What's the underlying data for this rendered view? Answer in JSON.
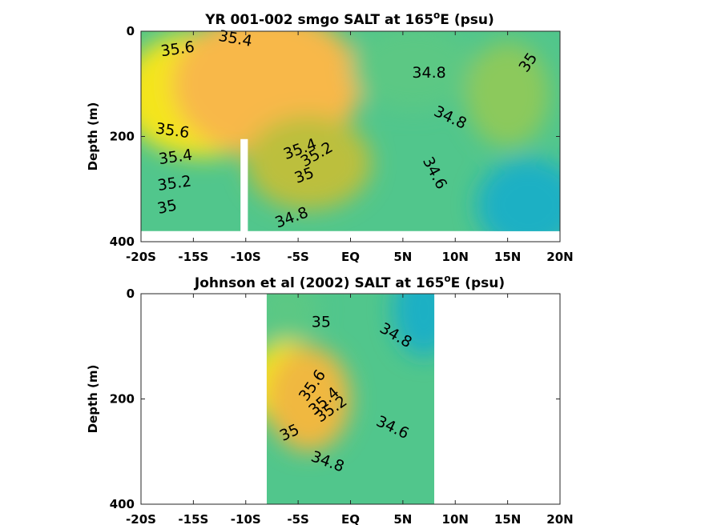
{
  "chart_data": [
    {
      "type": "heatmap",
      "title_main": "YR 001-002 smgo SALT at 165",
      "title_sup": "o",
      "title_tail": "E (psu)",
      "ylabel": "Depth (m)",
      "xlabel": "",
      "x_ticks": [
        "-20S",
        "-15S",
        "-10S",
        "-5S",
        "EQ",
        "5N",
        "10N",
        "15N",
        "20N"
      ],
      "x_tick_values": [
        -20,
        -15,
        -10,
        -5,
        0,
        5,
        10,
        15,
        20
      ],
      "y_ticks": [
        "0",
        "200",
        "400"
      ],
      "y_tick_values": [
        0,
        200,
        400
      ],
      "xlim": [
        -20,
        20
      ],
      "ylim": [
        400,
        0
      ],
      "data_xlim": [
        -20,
        20
      ],
      "data_ylim": [
        0,
        380
      ],
      "masked_column": {
        "x": [
          -10.5,
          -9.8
        ],
        "y": [
          205,
          400
        ]
      },
      "color_range": [
        34.2,
        35.8
      ],
      "colormap": [
        "#1f8fe0",
        "#1bb0c4",
        "#2fc0a4",
        "#5cc884",
        "#8cc95c",
        "#bcbf3e",
        "#e8b83a",
        "#f8b848",
        "#f4e51e"
      ],
      "field_features": [
        {
          "x": -14,
          "y": 120,
          "value": 35.8,
          "rx": 8,
          "ry": 120
        },
        {
          "x": -8,
          "y": 100,
          "value": 35.6,
          "rx": 9,
          "ry": 140
        },
        {
          "x": -4,
          "y": 250,
          "value": 35.2,
          "rx": 6,
          "ry": 90
        },
        {
          "x": 6,
          "y": 70,
          "value": 34.8,
          "rx": 6,
          "ry": 80
        },
        {
          "x": 15,
          "y": 120,
          "value": 35.0,
          "rx": 4,
          "ry": 100
        },
        {
          "x": 17,
          "y": 330,
          "value": 34.4,
          "rx": 5,
          "ry": 90
        }
      ],
      "contour_labels": [
        {
          "text": "35.4",
          "x": -11,
          "y": 15,
          "rot": 10
        },
        {
          "text": "35.6",
          "x": -16.5,
          "y": 35,
          "rot": -8
        },
        {
          "text": "35.6",
          "x": -17,
          "y": 190,
          "rot": 8
        },
        {
          "text": "35.4",
          "x": -16.7,
          "y": 240,
          "rot": -8
        },
        {
          "text": "35.2",
          "x": -16.8,
          "y": 290,
          "rot": -8
        },
        {
          "text": "35",
          "x": -17.5,
          "y": 335,
          "rot": -12
        },
        {
          "text": "35.4",
          "x": -4.8,
          "y": 225,
          "rot": -20
        },
        {
          "text": "35.2",
          "x": -3.2,
          "y": 235,
          "rot": -30
        },
        {
          "text": "35",
          "x": -4.4,
          "y": 275,
          "rot": -20
        },
        {
          "text": "34.8",
          "x": -5.6,
          "y": 355,
          "rot": -20
        },
        {
          "text": "34.8",
          "x": 7.5,
          "y": 80,
          "rot": 0
        },
        {
          "text": "34.8",
          "x": 9.5,
          "y": 165,
          "rot": 25
        },
        {
          "text": "34.6",
          "x": 8,
          "y": 270,
          "rot": 62
        },
        {
          "text": "35",
          "x": 17,
          "y": 60,
          "rot": -55
        }
      ]
    },
    {
      "type": "heatmap",
      "title_main": "Johnson et al (2002) SALT at 165",
      "title_sup": "o",
      "title_tail": "E (psu)",
      "ylabel": "Depth (m)",
      "xlabel": "",
      "x_ticks": [
        "-20S",
        "-15S",
        "-10S",
        "-5S",
        "EQ",
        "5N",
        "10N",
        "15N",
        "20N"
      ],
      "x_tick_values": [
        -20,
        -15,
        -10,
        -5,
        0,
        5,
        10,
        15,
        20
      ],
      "y_ticks": [
        "0",
        "200",
        "400"
      ],
      "y_tick_values": [
        0,
        200,
        400
      ],
      "xlim": [
        -20,
        20
      ],
      "ylim": [
        400,
        0
      ],
      "data_xlim": [
        -8,
        8
      ],
      "data_ylim": [
        0,
        400
      ],
      "color_range": [
        34.2,
        35.8
      ],
      "colormap": [
        "#1f8fe0",
        "#1bb0c4",
        "#2fc0a4",
        "#5cc884",
        "#8cc95c",
        "#bcbf3e",
        "#e8b83a",
        "#f8b848",
        "#f4e51e"
      ],
      "field_features": [
        {
          "x": -6,
          "y": 170,
          "value": 35.8,
          "rx": 4,
          "ry": 80
        },
        {
          "x": -4,
          "y": 200,
          "value": 35.5,
          "rx": 4,
          "ry": 100
        },
        {
          "x": 7,
          "y": 30,
          "value": 34.4,
          "rx": 3,
          "ry": 90
        },
        {
          "x": -6,
          "y": 30,
          "value": 34.8,
          "rx": 3,
          "ry": 60
        }
      ],
      "contour_labels": [
        {
          "text": "35",
          "x": -2.8,
          "y": 55,
          "rot": 0
        },
        {
          "text": "34.8",
          "x": 4.3,
          "y": 80,
          "rot": 30
        },
        {
          "text": "35.6",
          "x": -3.6,
          "y": 175,
          "rot": -55
        },
        {
          "text": "35.4",
          "x": -2.5,
          "y": 205,
          "rot": -40
        },
        {
          "text": "35.2",
          "x": -1.8,
          "y": 220,
          "rot": -35
        },
        {
          "text": "35",
          "x": -5.8,
          "y": 265,
          "rot": -25
        },
        {
          "text": "34.6",
          "x": 4,
          "y": 255,
          "rot": 25
        },
        {
          "text": "34.8",
          "x": -2.2,
          "y": 320,
          "rot": 20
        }
      ]
    }
  ]
}
